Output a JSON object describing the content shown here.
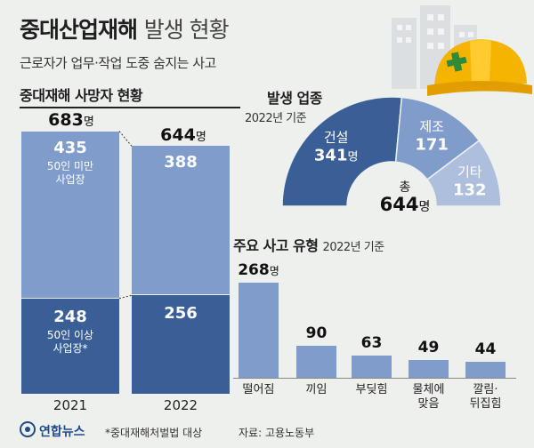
{
  "header": {
    "title_bold": "중대산업재해",
    "title_light": "발생 현황",
    "subtitle": "근로자가 업무·작업 도중 숨지는 사고"
  },
  "deaths": {
    "section_title": "중대재해 사망자 현황",
    "unit": "명",
    "years": [
      {
        "year": "2021",
        "total": "683",
        "small": "435",
        "small_label": "50인 미만\n사업장",
        "large": "248",
        "large_label": "50인 이상\n사업장*"
      },
      {
        "year": "2022",
        "total": "644",
        "small": "388",
        "small_label": "",
        "large": "256",
        "large_label": ""
      }
    ]
  },
  "industry": {
    "section_title": "발생 업종",
    "note": "2022년 기준",
    "total_label": "총",
    "total_value": "644",
    "unit": "명",
    "segments": [
      {
        "name": "건설",
        "value": 341,
        "display": "341",
        "unit": "명",
        "color": "#3a5f96"
      },
      {
        "name": "제조",
        "value": 171,
        "display": "171",
        "unit": "",
        "color": "#7f9ccb"
      },
      {
        "name": "기타",
        "value": 132,
        "display": "132",
        "unit": "",
        "color": "#aebfdd"
      }
    ]
  },
  "accident_types": {
    "section_title": "주요 사고 유형",
    "note": "2022년 기준",
    "unit": "명",
    "bars": [
      {
        "label": "떨어짐",
        "value": 268,
        "display": "268"
      },
      {
        "label": "끼임",
        "value": 90,
        "display": "90"
      },
      {
        "label": "부딪힘",
        "value": 63,
        "display": "63"
      },
      {
        "label": "물체에\n맞음",
        "value": 49,
        "display": "49"
      },
      {
        "label": "깔림·\n뒤집힘",
        "value": 44,
        "display": "44"
      }
    ]
  },
  "footer": {
    "brand": "연합뉴스",
    "footnote": "*중대재해처벌법 대상",
    "source": "자료: 고용노동부"
  },
  "colors": {
    "dark_blue": "#3a5f96",
    "mid_blue": "#7f9ccb",
    "light_blue": "#aebfdd",
    "helmet": "#f5b400",
    "cross": "#2f8a3a"
  },
  "chart_data": [
    {
      "type": "bar",
      "title": "중대재해 사망자 현황",
      "categories": [
        "2021",
        "2022"
      ],
      "series": [
        {
          "name": "50인 미만 사업장",
          "values": [
            435,
            388
          ]
        },
        {
          "name": "50인 이상 사업장*",
          "values": [
            248,
            256
          ]
        }
      ],
      "totals": [
        683,
        644
      ],
      "stacked": true
    },
    {
      "type": "pie",
      "title": "발생 업종",
      "subtitle": "2022년 기준",
      "categories": [
        "건설",
        "제조",
        "기타"
      ],
      "values": [
        341,
        171,
        132
      ],
      "total": 644
    },
    {
      "type": "bar",
      "title": "주요 사고 유형",
      "subtitle": "2022년 기준",
      "categories": [
        "떨어짐",
        "끼임",
        "부딪힘",
        "물체에 맞음",
        "깔림·뒤집힘"
      ],
      "values": [
        268,
        90,
        63,
        49,
        44
      ]
    }
  ]
}
